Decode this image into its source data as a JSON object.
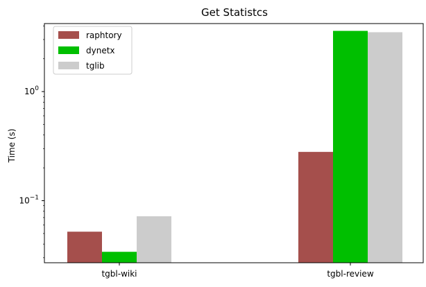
{
  "chart_data": {
    "type": "bar",
    "title": "Get Statistcs",
    "xlabel": "",
    "ylabel": "Time (s)",
    "yscale": "log",
    "ylim": [
      0.027,
      4.2
    ],
    "y_major_ticks": [
      {
        "value": 0.1,
        "base": "10",
        "exp": "−1"
      },
      {
        "value": 1,
        "base": "10",
        "exp": "0"
      }
    ],
    "categories": [
      "tgbl-wiki",
      "tgbl-review"
    ],
    "series": [
      {
        "name": "raphtory",
        "color": "#a54f4c",
        "values": [
          0.052,
          0.28
        ]
      },
      {
        "name": "dynetx",
        "color": "#00bf00",
        "values": [
          0.034,
          3.6
        ]
      },
      {
        "name": "tglib",
        "color": "#cccccc",
        "values": [
          0.072,
          3.5
        ]
      }
    ],
    "legend": "top-left",
    "grid": false
  }
}
